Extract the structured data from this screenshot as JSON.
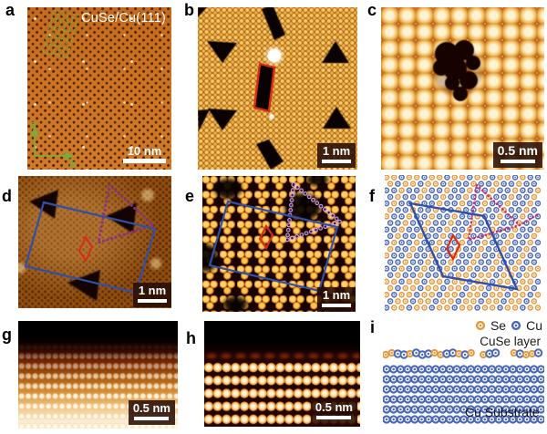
{
  "figure": {
    "panel_a": {
      "label": "a",
      "annotation": "CuSe/Cu(111)",
      "scale_label": "10 nm",
      "axis_a_label": "a",
      "axis_b_label": "b"
    },
    "panel_b": {
      "label": "b",
      "scale_label": "1 nm"
    },
    "panel_c": {
      "label": "c",
      "scale_label": "0.5 nm"
    },
    "panel_d": {
      "label": "d",
      "scale_label": "1 nm"
    },
    "panel_e": {
      "label": "e",
      "scale_label": "1 nm"
    },
    "panel_f": {
      "label": "f"
    },
    "panel_g": {
      "label": "g",
      "scale_label": "0.5 nm"
    },
    "panel_h": {
      "label": "h",
      "scale_label": "0.5 nm"
    },
    "panel_i": {
      "label": "i",
      "legend_se": "Se",
      "legend_cu": "Cu",
      "layer_label": "CuSe layer",
      "substrate_label": "Cu Substrate"
    }
  },
  "colors": {
    "se_orange": "#e8973a",
    "cu_blue": "#4a67b8",
    "unit_cell_blue": "#2f4fa8",
    "unit_cell_red": "#da2c12",
    "triangle_purple": "#8b2f86",
    "triangle_pink": "#cc2e6e",
    "lattice_green": "#76ad3c",
    "scalebar_white": "#ffffff"
  }
}
